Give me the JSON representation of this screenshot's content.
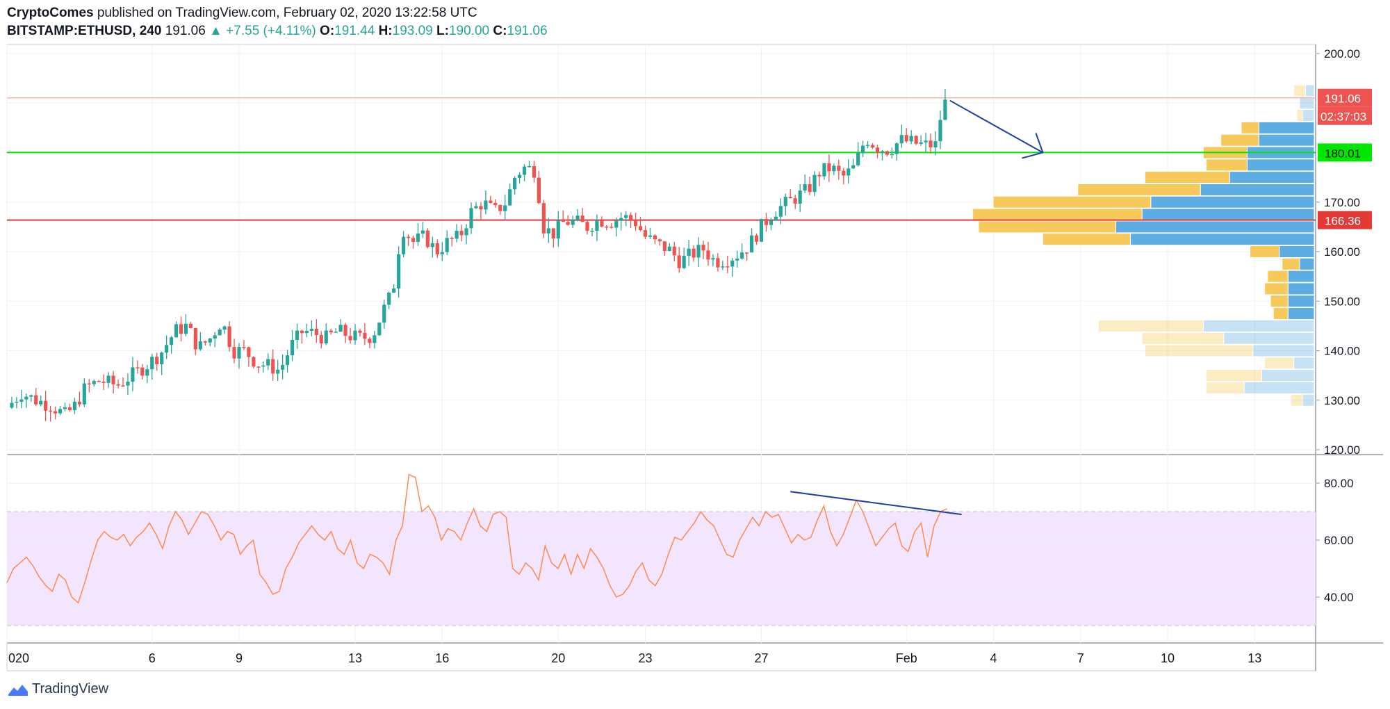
{
  "header": {
    "publisher": "CryptoComes",
    "published_text": "published on TradingView.com, February 02, 2020 13:22:58 UTC",
    "symbol": "BITSTAMP:ETHUSD, 240",
    "last": "191.06",
    "change": "+7.55 (+4.11%)",
    "o_label": "O:",
    "o_value": "191.44",
    "h_label": "H:",
    "h_value": "193.09",
    "l_label": "L:",
    "l_value": "190.00",
    "c_label": "C:",
    "c_value": "191.06"
  },
  "footer": {
    "brand": "TradingView"
  },
  "colors": {
    "up": "#26a69a",
    "down": "#ef5350",
    "support": "#00e600",
    "resistance": "#e53935",
    "rsi_line": "#ff8a50",
    "rsi_band": "#f3e5fd",
    "trend": "#1f3fa3",
    "vp_up": "#5dade2",
    "vp_down": "#f7c95a"
  },
  "chart_data": [
    {
      "type": "candlestick",
      "title": "BITSTAMP:ETHUSD, 240",
      "y_ticks": [
        "200.00",
        "170.00",
        "160.00",
        "150.00",
        "140.00",
        "130.00",
        "120.00"
      ],
      "ylim": [
        118,
        203
      ],
      "x_ticks": [
        {
          "label": "020",
          "day": 1
        },
        {
          "label": "6",
          "day": 6
        },
        {
          "label": "9",
          "day": 9
        },
        {
          "label": "13",
          "day": 13
        },
        {
          "label": "16",
          "day": 16
        },
        {
          "label": "20",
          "day": 20
        },
        {
          "label": "23",
          "day": 23
        },
        {
          "label": "27",
          "day": 27
        },
        {
          "label": "Feb",
          "day": 32
        },
        {
          "label": "4",
          "day": 35
        },
        {
          "label": "7",
          "day": 38
        },
        {
          "label": "10",
          "day": 41
        },
        {
          "label": "13",
          "day": 44
        }
      ],
      "close_path": [
        [
          1.0,
          128.5
        ],
        [
          1.5,
          131.5
        ],
        [
          2.0,
          130.0
        ],
        [
          2.5,
          129.0
        ],
        [
          3.0,
          127.0
        ],
        [
          3.3,
          128.5
        ],
        [
          3.7,
          132.5
        ],
        [
          4.2,
          134.0
        ],
        [
          4.8,
          133.0
        ],
        [
          5.3,
          135.0
        ],
        [
          5.8,
          137.0
        ],
        [
          6.3,
          139.5
        ],
        [
          6.8,
          144.0
        ],
        [
          7.2,
          145.0
        ],
        [
          7.6,
          140.5
        ],
        [
          8.0,
          142.5
        ],
        [
          8.4,
          146.0
        ],
        [
          8.8,
          140.0
        ],
        [
          9.2,
          140.0
        ],
        [
          9.6,
          137.5
        ],
        [
          10.0,
          137.0
        ],
        [
          10.4,
          136.0
        ],
        [
          10.8,
          141.0
        ],
        [
          11.2,
          144.0
        ],
        [
          11.6,
          143.5
        ],
        [
          12.0,
          142.5
        ],
        [
          12.4,
          144.0
        ],
        [
          12.8,
          143.0
        ],
        [
          13.2,
          142.5
        ],
        [
          13.6,
          143.0
        ],
        [
          14.0,
          148.5
        ],
        [
          14.3,
          152.0
        ],
        [
          14.6,
          165.0
        ],
        [
          15.0,
          162.0
        ],
        [
          15.4,
          163.0
        ],
        [
          15.8,
          160.0
        ],
        [
          16.2,
          162.0
        ],
        [
          16.6,
          163.0
        ],
        [
          17.0,
          168.0
        ],
        [
          17.4,
          170.0
        ],
        [
          17.8,
          168.0
        ],
        [
          18.2,
          170.0
        ],
        [
          18.5,
          175.0
        ],
        [
          18.8,
          177.0
        ],
        [
          19.2,
          176.5
        ],
        [
          19.5,
          165.0
        ],
        [
          19.8,
          163.5
        ],
        [
          20.2,
          166.0
        ],
        [
          20.6,
          166.0
        ],
        [
          21.0,
          165.0
        ],
        [
          21.4,
          166.5
        ],
        [
          21.8,
          166.0
        ],
        [
          22.2,
          167.0
        ],
        [
          22.6,
          166.5
        ],
        [
          23.0,
          163.0
        ],
        [
          23.4,
          161.5
        ],
        [
          23.8,
          160.5
        ],
        [
          24.2,
          158.0
        ],
        [
          24.6,
          159.5
        ],
        [
          25.0,
          160.5
        ],
        [
          25.4,
          158.0
        ],
        [
          25.8,
          158.5
        ],
        [
          26.2,
          159.5
        ],
        [
          26.6,
          161.5
        ],
        [
          27.0,
          165.0
        ],
        [
          27.4,
          168.0
        ],
        [
          27.8,
          169.5
        ],
        [
          28.2,
          171.0
        ],
        [
          28.6,
          172.5
        ],
        [
          29.0,
          176.0
        ],
        [
          29.4,
          177.0
        ],
        [
          29.8,
          175.0
        ],
        [
          30.2,
          177.0
        ],
        [
          30.6,
          183.0
        ],
        [
          31.0,
          181.0
        ],
        [
          31.4,
          180.5
        ],
        [
          31.8,
          182.5
        ],
        [
          32.2,
          182.0
        ],
        [
          32.6,
          181.5
        ],
        [
          33.0,
          181.5
        ],
        [
          33.2,
          188.0
        ],
        [
          33.4,
          191.06
        ]
      ],
      "volume_profile": [
        {
          "price": 192.5,
          "up": 0.03,
          "down": 0.04,
          "faded": true
        },
        {
          "price": 190.0,
          "up": 0.05,
          "down": 0.0,
          "faded": true
        },
        {
          "price": 187.5,
          "up": 0.04,
          "down": 0.02,
          "faded": true
        },
        {
          "price": 185.0,
          "up": 0.19,
          "down": 0.06,
          "faded": false
        },
        {
          "price": 182.5,
          "up": 0.19,
          "down": 0.13,
          "faded": false
        },
        {
          "price": 180.0,
          "up": 0.23,
          "down": 0.15,
          "faded": false
        },
        {
          "price": 177.5,
          "up": 0.23,
          "down": 0.14,
          "faded": false
        },
        {
          "price": 175.0,
          "up": 0.29,
          "down": 0.29,
          "faded": false
        },
        {
          "price": 172.5,
          "up": 0.39,
          "down": 0.42,
          "faded": false
        },
        {
          "price": 170.0,
          "up": 0.56,
          "down": 0.54,
          "faded": false
        },
        {
          "price": 167.5,
          "up": 0.59,
          "down": 0.58,
          "faded": false
        },
        {
          "price": 165.0,
          "up": 0.68,
          "down": 0.47,
          "faded": false
        },
        {
          "price": 162.5,
          "up": 0.63,
          "down": 0.3,
          "faded": false
        },
        {
          "price": 160.0,
          "up": 0.12,
          "down": 0.1,
          "faded": false
        },
        {
          "price": 157.5,
          "up": 0.05,
          "down": 0.06,
          "faded": false
        },
        {
          "price": 155.0,
          "up": 0.09,
          "down": 0.07,
          "faded": false
        },
        {
          "price": 152.5,
          "up": 0.09,
          "down": 0.08,
          "faded": false
        },
        {
          "price": 150.0,
          "up": 0.09,
          "down": 0.06,
          "faded": false
        },
        {
          "price": 147.5,
          "up": 0.09,
          "down": 0.05,
          "faded": false
        },
        {
          "price": 145.0,
          "up": 0.38,
          "down": 0.36,
          "faded": true
        },
        {
          "price": 142.5,
          "up": 0.31,
          "down": 0.28,
          "faded": true
        },
        {
          "price": 140.0,
          "up": 0.21,
          "down": 0.37,
          "faded": true
        },
        {
          "price": 137.5,
          "up": 0.07,
          "down": 0.1,
          "faded": true
        },
        {
          "price": 135.0,
          "up": 0.18,
          "down": 0.19,
          "faded": true
        },
        {
          "price": 132.5,
          "up": 0.24,
          "down": 0.13,
          "faded": true
        },
        {
          "price": 130.0,
          "up": 0.04,
          "down": 0.04,
          "faded": true
        }
      ],
      "levels": [
        {
          "name": "support",
          "value": 180.01,
          "label": "180.01",
          "color": "#00e600"
        },
        {
          "name": "resistance",
          "value": 166.36,
          "label": "166.36",
          "color": "#e53935"
        },
        {
          "name": "last",
          "value": 191.06,
          "label": "191.06",
          "countdown": "02:37:03",
          "color": "#ef5350"
        }
      ],
      "arrow": {
        "from": [
          33.5,
          190.5
        ],
        "to": [
          36.7,
          180.0
        ]
      }
    },
    {
      "type": "line",
      "title": "RSI",
      "y_ticks": [
        "80.00",
        "60.00",
        "40.00"
      ],
      "ylim": [
        25,
        90
      ],
      "band": [
        30,
        70
      ],
      "values": [
        45,
        50,
        52,
        54,
        51,
        47,
        44,
        42,
        48,
        46,
        40,
        38,
        45,
        53,
        60,
        63,
        61,
        60,
        62,
        58,
        61,
        63,
        66,
        62,
        57,
        65,
        70,
        67,
        62,
        66,
        70,
        69,
        65,
        60,
        63,
        62,
        55,
        58,
        60,
        48,
        45,
        41,
        42,
        50,
        54,
        59,
        62,
        65,
        62,
        60,
        63,
        57,
        55,
        60,
        52,
        50,
        55,
        54,
        52,
        48,
        60,
        65,
        83,
        82,
        70,
        72,
        68,
        60,
        64,
        63,
        60,
        66,
        71,
        65,
        63,
        69,
        70,
        68,
        50,
        48,
        52,
        50,
        46,
        58,
        52,
        50,
        55,
        48,
        55,
        50,
        57,
        54,
        50,
        44,
        40,
        41,
        44,
        49,
        52,
        46,
        44,
        48,
        55,
        61,
        60,
        63,
        66,
        70,
        67,
        65,
        60,
        55,
        54,
        60,
        64,
        68,
        65,
        70,
        68,
        69,
        64,
        59,
        62,
        60,
        61,
        67,
        72,
        63,
        58,
        62,
        68,
        74,
        70,
        64,
        58,
        61,
        64,
        66,
        58,
        56,
        63,
        66,
        54,
        65,
        70,
        71
      ],
      "divergence": {
        "from": [
          28.0,
          77
        ],
        "to": [
          33.9,
          69
        ]
      }
    }
  ]
}
